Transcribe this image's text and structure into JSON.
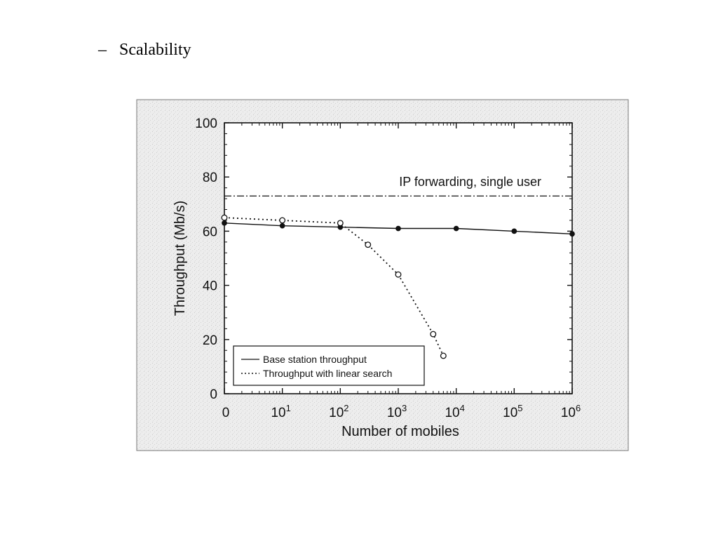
{
  "slide": {
    "bullet_marker": "–",
    "bullet_text": "Scalability"
  },
  "chart_data": {
    "type": "line",
    "xlabel": "Number of mobiles",
    "ylabel": "Throughput (Mb/s)",
    "x_scale": "log (0 at origin)",
    "x_ticks": [
      {
        "label": "0",
        "base": "0",
        "exp": ""
      },
      {
        "label": "10^1",
        "base": "10",
        "exp": "1"
      },
      {
        "label": "10^2",
        "base": "10",
        "exp": "2"
      },
      {
        "label": "10^3",
        "base": "10",
        "exp": "3"
      },
      {
        "label": "10^4",
        "base": "10",
        "exp": "4"
      },
      {
        "label": "10^5",
        "base": "10",
        "exp": "5"
      },
      {
        "label": "10^6",
        "base": "10",
        "exp": "6"
      }
    ],
    "y_ticks": [
      "0",
      "20",
      "40",
      "60",
      "80",
      "100"
    ],
    "ylim": [
      0,
      100
    ],
    "reference_line": {
      "label": "IP forwarding, single user",
      "y": 73,
      "style": "dash-dot"
    },
    "series": [
      {
        "name": "Base station throughput",
        "style": "solid",
        "marker": "filled-circle",
        "x": [
          0,
          10,
          100,
          1000,
          10000,
          100000,
          1000000
        ],
        "y": [
          63,
          62,
          61.5,
          61,
          61,
          60,
          59
        ]
      },
      {
        "name": "Throughput with linear search",
        "style": "dotted",
        "marker": "open-circle",
        "x": [
          0,
          10,
          100,
          300,
          1000,
          4000,
          6000
        ],
        "y": [
          65,
          64,
          63,
          55,
          44,
          22,
          14
        ]
      }
    ],
    "legend_position": "bottom-left",
    "grid": false,
    "colors": {
      "panel_bg": "#ececec",
      "plot_bg": "#ffffff",
      "ink": "#111111"
    }
  }
}
